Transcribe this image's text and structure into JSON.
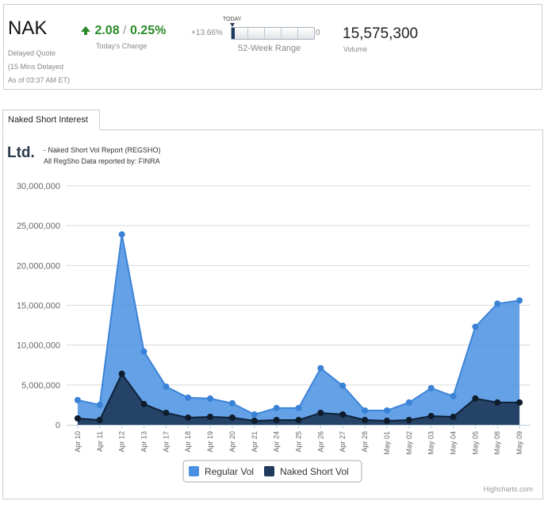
{
  "quote": {
    "symbol": "NAK",
    "delayed_label": "Delayed Quote",
    "delay_note": "(15 Mins Delayed",
    "as_of": "As of 03:37 AM ET)",
    "change_value": "2.08",
    "change_sep": "/",
    "change_percent": "0.25%",
    "change_label": "Today's Change",
    "range_low_pct": "+13.66%",
    "range_today_label": "TODAY",
    "range_high": "0",
    "range_label": "52-Week Range",
    "range_position": 0.04,
    "volume": "15,575,300",
    "volume_label": "Volume"
  },
  "tab": {
    "label": "Naked Short Interest"
  },
  "report": {
    "logo_text": "Ltd.",
    "line1": "- Naked Short Vol Report  (REGSHO)",
    "line2": "All RegSho Data reported by: FINRA"
  },
  "chart_data": {
    "type": "area",
    "categories": [
      "Apr 10",
      "Apr 11",
      "Apr 12",
      "Apr 13",
      "Apr 17",
      "Apr 18",
      "Apr 19",
      "Apr 20",
      "Apr 21",
      "Apr 24",
      "Apr 25",
      "Apr 26",
      "Apr 27",
      "Apr 28",
      "May 01",
      "May 02",
      "May 03",
      "May 04",
      "May 05",
      "May 08",
      "May 09"
    ],
    "ylim": [
      0,
      30000000
    ],
    "yticks": [
      0,
      5000000,
      10000000,
      15000000,
      20000000,
      25000000,
      30000000
    ],
    "ytick_labels": [
      "0",
      "5,000,000",
      "10,000,000",
      "15,000,000",
      "20,000,000",
      "25,000,000",
      "30,000,000"
    ],
    "grid": true,
    "legend_position": "bottom-center",
    "series": [
      {
        "name": "Regular Vol",
        "color": "#4a90e2",
        "values": [
          3100000,
          2500000,
          23900000,
          9200000,
          4800000,
          3400000,
          3300000,
          2700000,
          1300000,
          2100000,
          2100000,
          7100000,
          4900000,
          1800000,
          1800000,
          2800000,
          4600000,
          3600000,
          12300000,
          15200000,
          15600000
        ]
      },
      {
        "name": "Naked Short Vol",
        "color": "#1f3a5c",
        "values": [
          800000,
          600000,
          6400000,
          2600000,
          1500000,
          900000,
          1000000,
          900000,
          500000,
          600000,
          600000,
          1500000,
          1300000,
          600000,
          500000,
          600000,
          1100000,
          1000000,
          3300000,
          2800000,
          2800000
        ]
      }
    ],
    "credits": "Highcharts.com"
  }
}
